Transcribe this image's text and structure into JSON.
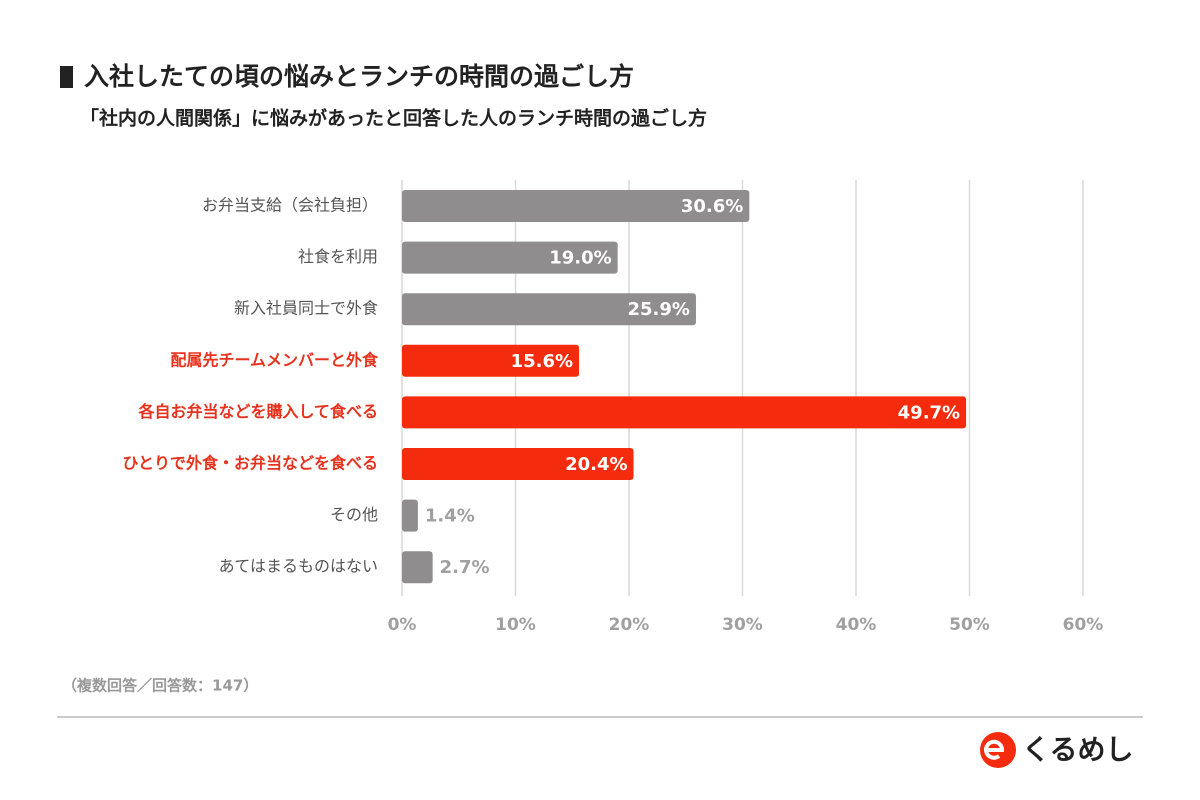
{
  "chart_data": {
    "type": "bar",
    "orientation": "horizontal",
    "title": "入社したての頃の悩みとランチの時間の過ごし方",
    "subtitle": "「社内の人間関係」に悩みがあったと回答した人のランチ時間の過ごし方",
    "categories": [
      "お弁当支給（会社負担）",
      "社食を利用",
      "新入社員同士で外食",
      "配属先チームメンバーと外食",
      "各自お弁当などを購入して食べる",
      "ひとりで外食・お弁当などを食べる",
      "その他",
      "あてはまるものはない"
    ],
    "values": [
      30.6,
      19.0,
      25.9,
      15.6,
      49.7,
      20.4,
      1.4,
      2.7
    ],
    "value_labels": [
      "30.6%",
      "19.0%",
      "25.9%",
      "15.6%",
      "49.7%",
      "20.4%",
      "1.4%",
      "2.7%"
    ],
    "colors": [
      "#8f8d8e",
      "#8f8d8e",
      "#8f8d8e",
      "#f42b0c",
      "#f42b0c",
      "#f42b0c",
      "#8f8d8e",
      "#8f8d8e"
    ],
    "label_colors": [
      "#555555",
      "#555555",
      "#555555",
      "#e8321d",
      "#e8321d",
      "#e8321d",
      "#555555",
      "#555555"
    ],
    "xlim": [
      0,
      60
    ],
    "xticks": [
      {
        "value": 0,
        "label": "0%"
      },
      {
        "value": 10,
        "label": "10%"
      },
      {
        "value": 20,
        "label": "20%"
      },
      {
        "value": 30,
        "label": "30%"
      },
      {
        "value": 40,
        "label": "40%"
      },
      {
        "value": 50,
        "label": "50%"
      },
      {
        "value": 60,
        "label": "60%"
      }
    ],
    "grid": true,
    "note": "（複数回答／回答数：147）",
    "brand": "くるめし"
  }
}
